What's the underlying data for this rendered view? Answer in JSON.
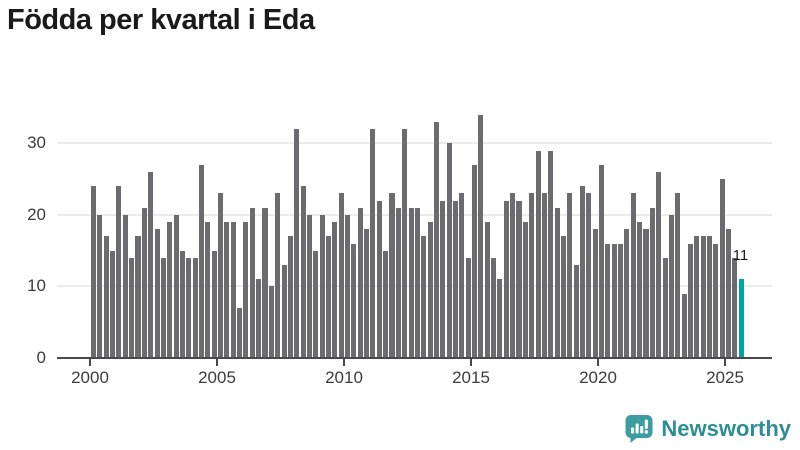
{
  "title": "Födda per kvartal i Eda",
  "chart_data": {
    "type": "bar",
    "title": "Födda per kvartal i Eda",
    "x_start": "2000-Q1",
    "x_end": "2025-Q3",
    "x_tick_labels": [
      "2000",
      "2005",
      "2010",
      "2015",
      "2020",
      "2025"
    ],
    "y_ticks": [
      0,
      10,
      20,
      30
    ],
    "y_tick_labels": [
      "0",
      "10",
      "20",
      "30"
    ],
    "ylim": [
      0,
      36
    ],
    "grid": "horizontal",
    "legend": "none",
    "series": [
      {
        "name": "Födda per kvartal",
        "values": [
          24,
          20,
          17,
          15,
          24,
          20,
          14,
          17,
          21,
          26,
          18,
          14,
          19,
          20,
          15,
          14,
          14,
          27,
          19,
          15,
          23,
          19,
          19,
          7,
          19,
          21,
          11,
          21,
          10,
          23,
          13,
          17,
          32,
          24,
          20,
          15,
          20,
          17,
          19,
          23,
          20,
          16,
          21,
          18,
          32,
          22,
          15,
          23,
          21,
          32,
          21,
          21,
          17,
          19,
          33,
          22,
          30,
          22,
          23,
          14,
          27,
          34,
          19,
          14,
          11,
          22,
          23,
          22,
          19,
          23,
          29,
          23,
          29,
          21,
          17,
          23,
          13,
          24,
          23,
          18,
          27,
          16,
          16,
          16,
          18,
          23,
          19,
          18,
          21,
          26,
          14,
          20,
          23,
          9,
          16,
          17,
          17,
          17,
          16,
          25,
          18,
          14,
          11
        ]
      }
    ],
    "highlight": {
      "index": 102,
      "period": "2025-Q3",
      "value": 11,
      "label": "11"
    }
  },
  "annotation": {
    "last_value_label": "11"
  },
  "branding": {
    "logo_text": "Newsworthy",
    "icon": "newsworthy-speech-bubble-bar-chart-icon"
  },
  "colors": {
    "bar": "#6b6b70",
    "bar_highlight": "#00a4a6",
    "grid": "#ebebeb",
    "axis": "#4a4a4a",
    "title_text": "#1a1a1a",
    "tick_text": "#3c3c3c",
    "logo": "#2e8e94"
  }
}
